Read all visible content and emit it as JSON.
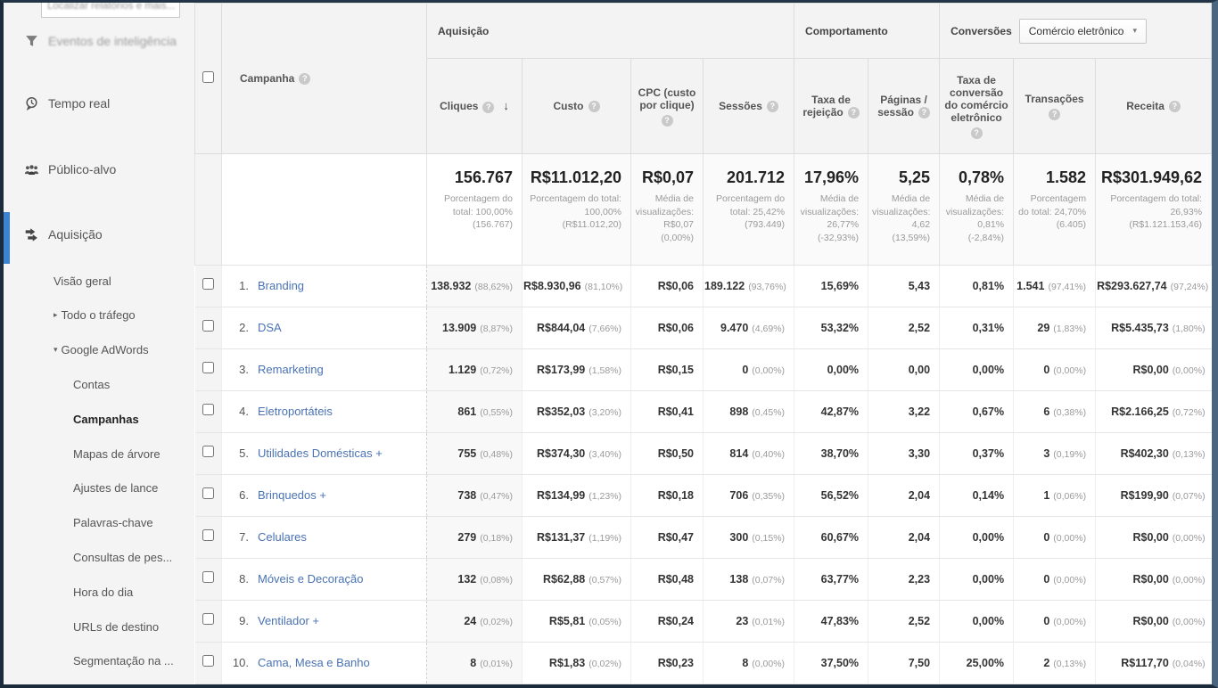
{
  "icons": {
    "help": "?",
    "sort_desc": "↓",
    "caret": "▾",
    "tri_right": "▸",
    "tri_down": "▾"
  },
  "colors": {
    "frame": "#1c2b3c",
    "accent_blue": "#3b82d0",
    "link_blue": "#4a72b4",
    "sidebar_bg": "#f4f4f4",
    "header_bg": "#f3f3f3"
  },
  "sidebar": {
    "search_text": "Localizar relatórios e mais...",
    "sections": [
      {
        "label": "Eventos de inteligência",
        "icon": "intelligence-events-icon",
        "faded": true,
        "active": false
      },
      {
        "label": "Tempo real",
        "icon": "real-time-icon",
        "faded": false,
        "active": false
      },
      {
        "label": "Público-alvo",
        "icon": "audience-icon",
        "faded": false,
        "active": false
      },
      {
        "label": "Aquisição",
        "icon": "acquisition-icon",
        "faded": false,
        "active": true
      }
    ],
    "subnav": [
      {
        "label": "Visão geral",
        "level": 1,
        "arrow": "",
        "selected": false
      },
      {
        "label": "Todo o tráfego",
        "level": 1,
        "arrow": "collapsed",
        "selected": false
      },
      {
        "label": "Google AdWords",
        "level": 1,
        "arrow": "expanded",
        "selected": false
      },
      {
        "label": "Contas",
        "level": 2,
        "arrow": "",
        "selected": false
      },
      {
        "label": "Campanhas",
        "level": 2,
        "arrow": "",
        "selected": true
      },
      {
        "label": "Mapas de árvore",
        "level": 2,
        "arrow": "",
        "selected": false
      },
      {
        "label": "Ajustes de lance",
        "level": 2,
        "arrow": "",
        "selected": false
      },
      {
        "label": "Palavras-chave",
        "level": 2,
        "arrow": "",
        "selected": false
      },
      {
        "label": "Consultas de pes...",
        "level": 2,
        "arrow": "",
        "selected": false
      },
      {
        "label": "Hora do dia",
        "level": 2,
        "arrow": "",
        "selected": false
      },
      {
        "label": "URLs de destino",
        "level": 2,
        "arrow": "",
        "selected": false
      },
      {
        "label": "Segmentação na ...",
        "level": 2,
        "arrow": "",
        "selected": false
      }
    ]
  },
  "table": {
    "groups": {
      "aquisicao": "Aquisição",
      "comportamento": "Comportamento",
      "conversoes": "Conversões"
    },
    "conversions_dropdown": "Comércio eletrônico",
    "columns": {
      "campanha": "Campanha",
      "cliques": "Cliques",
      "custo": "Custo",
      "cpc": "CPC (custo por clique)",
      "sessoes": "Sessões",
      "rejeicao": "Taxa de rejeição",
      "paginas": "Páginas / sessão",
      "conversao": "Taxa de conversão do comércio eletrônico",
      "transacoes": "Transações",
      "receita": "Receita"
    },
    "totals": {
      "cliques": {
        "value": "156.767",
        "sub": "Porcentagem do total: 100,00% (156.767)"
      },
      "custo": {
        "value": "R$11.012,20",
        "sub": "Porcentagem do total: 100,00% (R$11.012,20)"
      },
      "cpc": {
        "value": "R$0,07",
        "sub": "Média de visualizações: R$0,07 (0,00%)"
      },
      "sessoes": {
        "value": "201.712",
        "sub": "Porcentagem do total: 25,42% (793.449)"
      },
      "rejeicao": {
        "value": "17,96%",
        "sub": "Média de visualizações: 26,77% (-32,93%)"
      },
      "paginas": {
        "value": "5,25",
        "sub": "Média de visualizações: 4,62 (13,59%)"
      },
      "conversao": {
        "value": "0,78%",
        "sub": "Média de visualizações: 0,81% (-2,84%)"
      },
      "transacoes": {
        "value": "1.582",
        "sub": "Porcentagem do total: 24,70% (6.405)"
      },
      "receita": {
        "value": "R$301.949,62",
        "sub": "Porcentagem do total: 26,93% (R$1.121.153,46)"
      }
    },
    "rows": [
      {
        "num": "1.",
        "name": "Branding",
        "cliques": "138.932",
        "cliques_pct": "(88,62%)",
        "custo": "R$8.930,96",
        "custo_pct": "(81,10%)",
        "cpc": "R$0,06",
        "sessoes": "189.122",
        "sessoes_pct": "(93,76%)",
        "rejeicao": "15,69%",
        "paginas": "5,43",
        "conversao": "0,81%",
        "transacoes": "1.541",
        "transacoes_pct": "(97,41%)",
        "receita": "R$293.627,74",
        "receita_pct": "(97,24%)"
      },
      {
        "num": "2.",
        "name": "DSA",
        "cliques": "13.909",
        "cliques_pct": "(8,87%)",
        "custo": "R$844,04",
        "custo_pct": "(7,66%)",
        "cpc": "R$0,06",
        "sessoes": "9.470",
        "sessoes_pct": "(4,69%)",
        "rejeicao": "53,32%",
        "paginas": "2,52",
        "conversao": "0,31%",
        "transacoes": "29",
        "transacoes_pct": "(1,83%)",
        "receita": "R$5.435,73",
        "receita_pct": "(1,80%)"
      },
      {
        "num": "3.",
        "name": "Remarketing",
        "cliques": "1.129",
        "cliques_pct": "(0,72%)",
        "custo": "R$173,99",
        "custo_pct": "(1,58%)",
        "cpc": "R$0,15",
        "sessoes": "0",
        "sessoes_pct": "(0,00%)",
        "rejeicao": "0,00%",
        "paginas": "0,00",
        "conversao": "0,00%",
        "transacoes": "0",
        "transacoes_pct": "(0,00%)",
        "receita": "R$0,00",
        "receita_pct": "(0,00%)"
      },
      {
        "num": "4.",
        "name": "Eletroportáteis",
        "cliques": "861",
        "cliques_pct": "(0,55%)",
        "custo": "R$352,03",
        "custo_pct": "(3,20%)",
        "cpc": "R$0,41",
        "sessoes": "898",
        "sessoes_pct": "(0,45%)",
        "rejeicao": "42,87%",
        "paginas": "3,22",
        "conversao": "0,67%",
        "transacoes": "6",
        "transacoes_pct": "(0,38%)",
        "receita": "R$2.166,25",
        "receita_pct": "(0,72%)"
      },
      {
        "num": "5.",
        "name": "Utilidades Domésticas +",
        "cliques": "755",
        "cliques_pct": "(0,48%)",
        "custo": "R$374,30",
        "custo_pct": "(3,40%)",
        "cpc": "R$0,50",
        "sessoes": "814",
        "sessoes_pct": "(0,40%)",
        "rejeicao": "38,70%",
        "paginas": "3,30",
        "conversao": "0,37%",
        "transacoes": "3",
        "transacoes_pct": "(0,19%)",
        "receita": "R$402,30",
        "receita_pct": "(0,13%)"
      },
      {
        "num": "6.",
        "name": "Brinquedos +",
        "cliques": "738",
        "cliques_pct": "(0,47%)",
        "custo": "R$134,99",
        "custo_pct": "(1,23%)",
        "cpc": "R$0,18",
        "sessoes": "706",
        "sessoes_pct": "(0,35%)",
        "rejeicao": "56,52%",
        "paginas": "2,04",
        "conversao": "0,14%",
        "transacoes": "1",
        "transacoes_pct": "(0,06%)",
        "receita": "R$199,90",
        "receita_pct": "(0,07%)"
      },
      {
        "num": "7.",
        "name": "Celulares",
        "cliques": "279",
        "cliques_pct": "(0,18%)",
        "custo": "R$131,37",
        "custo_pct": "(1,19%)",
        "cpc": "R$0,47",
        "sessoes": "300",
        "sessoes_pct": "(0,15%)",
        "rejeicao": "60,67%",
        "paginas": "2,04",
        "conversao": "0,00%",
        "transacoes": "0",
        "transacoes_pct": "(0,00%)",
        "receita": "R$0,00",
        "receita_pct": "(0,00%)"
      },
      {
        "num": "8.",
        "name": "Móveis e Decoração",
        "cliques": "132",
        "cliques_pct": "(0,08%)",
        "custo": "R$62,88",
        "custo_pct": "(0,57%)",
        "cpc": "R$0,48",
        "sessoes": "138",
        "sessoes_pct": "(0,07%)",
        "rejeicao": "63,77%",
        "paginas": "2,23",
        "conversao": "0,00%",
        "transacoes": "0",
        "transacoes_pct": "(0,00%)",
        "receita": "R$0,00",
        "receita_pct": "(0,00%)"
      },
      {
        "num": "9.",
        "name": "Ventilador +",
        "cliques": "24",
        "cliques_pct": "(0,02%)",
        "custo": "R$5,81",
        "custo_pct": "(0,05%)",
        "cpc": "R$0,24",
        "sessoes": "23",
        "sessoes_pct": "(0,01%)",
        "rejeicao": "47,83%",
        "paginas": "2,52",
        "conversao": "0,00%",
        "transacoes": "0",
        "transacoes_pct": "(0,00%)",
        "receita": "R$0,00",
        "receita_pct": "(0,00%)"
      },
      {
        "num": "10.",
        "name": "Cama, Mesa e Banho",
        "cliques": "8",
        "cliques_pct": "(0,01%)",
        "custo": "R$1,83",
        "custo_pct": "(0,02%)",
        "cpc": "R$0,23",
        "sessoes": "8",
        "sessoes_pct": "(0,00%)",
        "rejeicao": "37,50%",
        "paginas": "7,50",
        "conversao": "25,00%",
        "transacoes": "2",
        "transacoes_pct": "(0,13%)",
        "receita": "R$117,70",
        "receita_pct": "(0,04%)"
      }
    ]
  }
}
